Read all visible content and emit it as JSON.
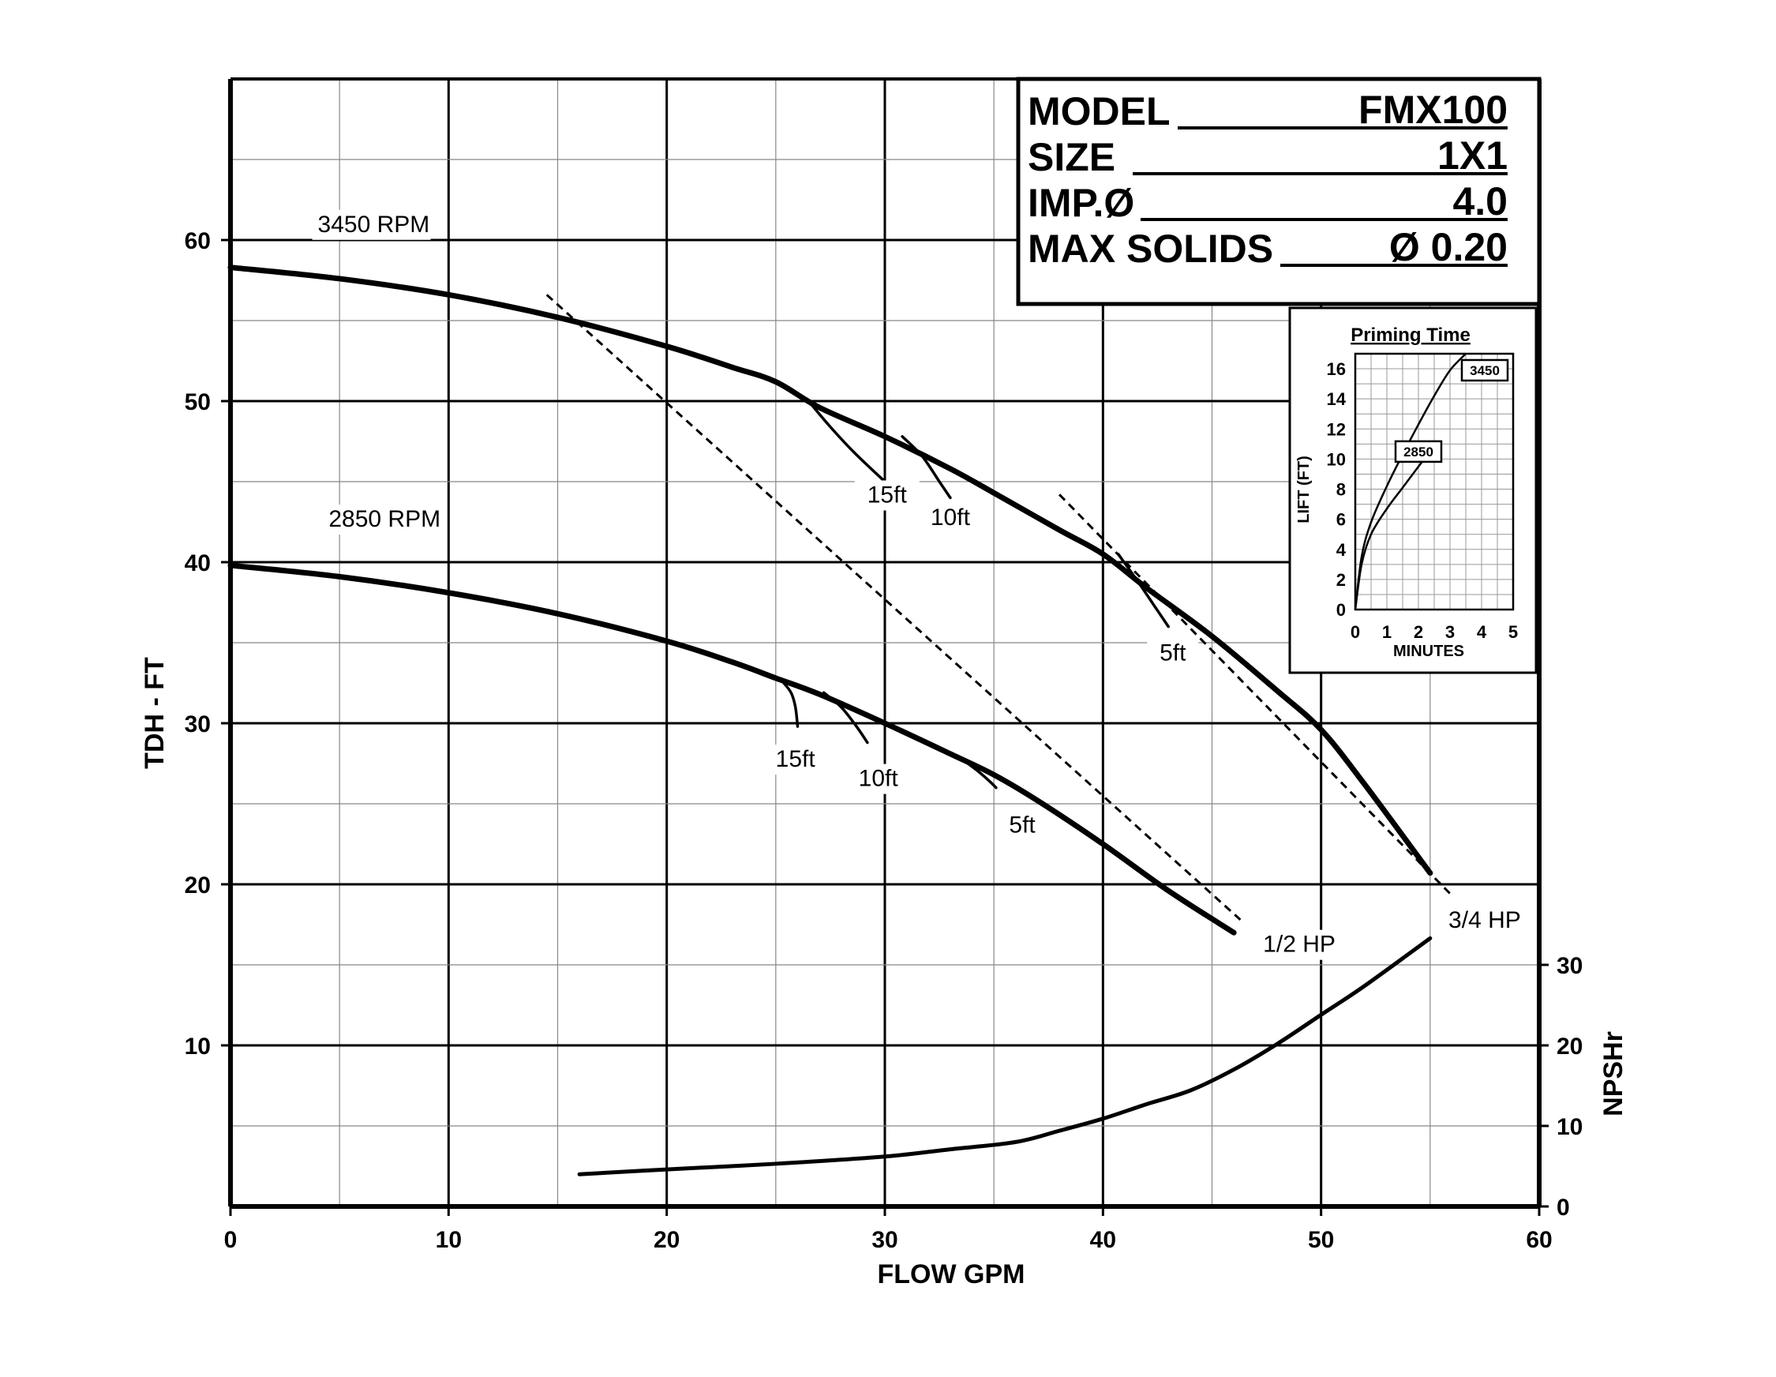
{
  "chart_data": {
    "type": "line",
    "xlabel": "FLOW GPM",
    "ylabel": "TDH - FT",
    "y2label": "NPSHr",
    "xlim": [
      0,
      60
    ],
    "ylim": [
      0,
      70
    ],
    "y2lim": [
      0,
      30
    ],
    "x_ticks": [
      "0",
      "10",
      "20",
      "30",
      "40",
      "50",
      "60"
    ],
    "y_ticks": [
      "10",
      "20",
      "30",
      "40",
      "50",
      "60"
    ],
    "y2_ticks": [
      "0",
      "10",
      "20",
      "30"
    ],
    "grid": true,
    "series": [
      {
        "name": "3450 RPM",
        "x": [
          0,
          5,
          10,
          15,
          20,
          23,
          25,
          27,
          30,
          33,
          35,
          38,
          40,
          42,
          45,
          48,
          50,
          52,
          55
        ],
        "y": [
          58.3,
          57.6,
          56.6,
          55.2,
          53.4,
          52.1,
          51.2,
          49.6,
          47.8,
          45.8,
          44.3,
          42.0,
          40.5,
          38.4,
          35.4,
          32.0,
          29.6,
          26.2,
          20.7
        ]
      },
      {
        "name": "2850 RPM",
        "x": [
          0,
          5,
          10,
          15,
          20,
          23,
          25,
          27,
          30,
          33,
          35,
          37,
          40,
          43,
          46
        ],
        "y": [
          39.8,
          39.1,
          38.1,
          36.8,
          35.1,
          33.8,
          32.8,
          31.8,
          30.0,
          28.1,
          26.8,
          25.2,
          22.5,
          19.6,
          17.0
        ]
      },
      {
        "name": "NPSHr",
        "axis": "y2",
        "x": [
          16,
          20,
          25,
          30,
          33,
          36,
          38,
          40,
          42,
          44,
          46,
          48,
          50,
          52,
          55
        ],
        "y": [
          4.0,
          4.6,
          5.3,
          6.2,
          7.1,
          8.0,
          9.4,
          10.9,
          12.7,
          14.4,
          17.0,
          20.2,
          23.8,
          27.4,
          33.3
        ]
      }
    ],
    "lift_branches": [
      {
        "label": "15ft",
        "label_at": [
          30.1,
          43.7
        ],
        "x": [
          26.5,
          27.5,
          28.6,
          30.0
        ],
        "y": [
          50.0,
          48.4,
          46.8,
          45.0
        ]
      },
      {
        "label": "10ft",
        "label_at": [
          33.0,
          42.3
        ],
        "x": [
          30.8,
          31.7,
          32.5,
          33.0
        ],
        "y": [
          47.8,
          46.6,
          45.0,
          44.0
        ]
      },
      {
        "label": "5ft",
        "label_at": [
          43.2,
          33.9
        ],
        "x": [
          40.7,
          41.6,
          42.4,
          43.0
        ],
        "y": [
          40.5,
          38.8,
          37.2,
          36.0
        ]
      },
      {
        "label": "15ft",
        "label_at": [
          25.9,
          27.3
        ],
        "x": [
          25.3,
          25.7,
          25.9,
          26.0
        ],
        "y": [
          32.6,
          31.9,
          31.0,
          29.8
        ]
      },
      {
        "label": "10ft",
        "label_at": [
          29.7,
          26.1
        ],
        "x": [
          27.2,
          28.0,
          28.7,
          29.2
        ],
        "y": [
          31.9,
          31.0,
          29.8,
          28.8
        ]
      },
      {
        "label": "5ft",
        "label_at": [
          36.3,
          23.2
        ],
        "x": [
          33.3,
          34.2,
          34.8,
          35.1
        ],
        "y": [
          28.0,
          27.1,
          26.4,
          26.0
        ]
      }
    ],
    "hp_lines": [
      {
        "label": "1/2 HP",
        "label_at": [
          49.0,
          15.8
        ],
        "x": [
          14.5,
          46.3
        ],
        "y": [
          56.6,
          17.8
        ]
      },
      {
        "label": "3/4 HP",
        "label_at": [
          57.5,
          17.3
        ],
        "x": [
          38.0,
          56.0
        ],
        "y": [
          44.2,
          19.3
        ]
      }
    ],
    "speed_labels": [
      {
        "label": "3450 RPM",
        "label_at": [
          4.0,
          60.5
        ]
      },
      {
        "label": "2850 RPM",
        "label_at": [
          4.5,
          42.2
        ]
      }
    ]
  },
  "info_box": {
    "rows": [
      {
        "label": "MODEL",
        "value": "FMX100"
      },
      {
        "label": "SIZE",
        "value": "1X1"
      },
      {
        "label": "IMP.Ø",
        "value": "4.0"
      },
      {
        "label": "MAX SOLIDS",
        "value": "Ø 0.20"
      }
    ]
  },
  "priming_chart": {
    "type": "line",
    "title": "Priming Time",
    "xlabel": "MINUTES",
    "ylabel": "LIFT (FT)",
    "xlim": [
      0,
      5
    ],
    "ylim": [
      0,
      17
    ],
    "x_ticks": [
      "0",
      "1",
      "2",
      "3",
      "4",
      "5"
    ],
    "y_ticks": [
      "0",
      "2",
      "4",
      "6",
      "8",
      "10",
      "12",
      "14",
      "16"
    ],
    "grid": true,
    "series": [
      {
        "name": "3450",
        "x": [
          0,
          0.2,
          0.5,
          1.0,
          1.5,
          2.0,
          2.5,
          3.0,
          3.5
        ],
        "y": [
          0,
          3.5,
          5.8,
          8.2,
          10.3,
          12.3,
          14.2,
          15.9,
          17.0
        ]
      },
      {
        "name": "2850",
        "x": [
          0,
          0.2,
          0.5,
          1.0,
          1.5,
          2.0,
          2.4
        ],
        "y": [
          0,
          3.0,
          5.0,
          6.7,
          8.1,
          9.5,
          10.6
        ]
      }
    ],
    "label_boxes": [
      {
        "name": "3450",
        "label_at": [
          4.1,
          15.9
        ]
      },
      {
        "name": "2850",
        "label_at": [
          2.0,
          10.5
        ]
      }
    ]
  }
}
